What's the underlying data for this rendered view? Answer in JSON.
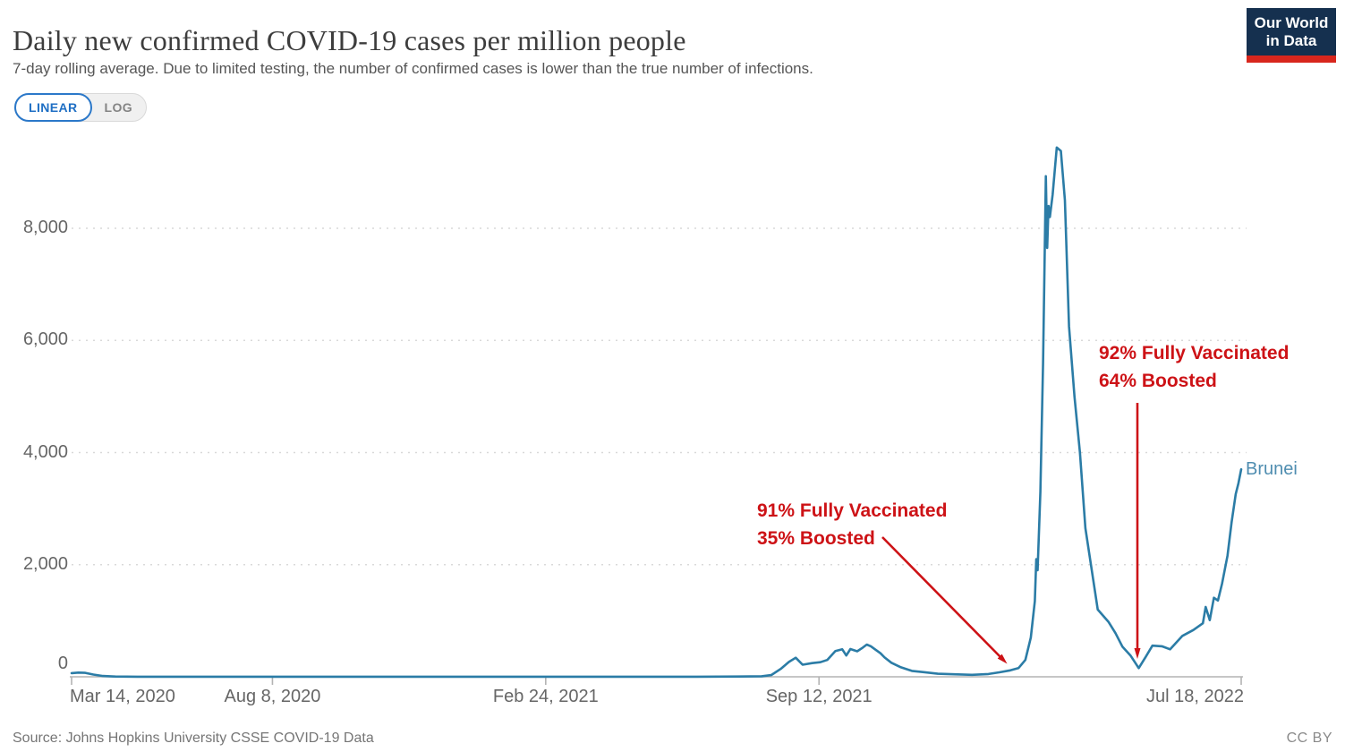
{
  "header": {
    "title": "Daily new confirmed COVID-19 cases per million people",
    "subtitle": "7-day rolling average. Due to limited testing, the number of confirmed cases is lower than the true number of infections.",
    "logo": {
      "line1": "Our World",
      "line2": "in Data"
    }
  },
  "controls": {
    "linear_label": "LINEAR",
    "log_label": "LOG"
  },
  "footer": {
    "source": "Source: Johns Hopkins University CSSE COVID-19 Data",
    "license": "CC BY"
  },
  "colors": {
    "line": "#2b7ca6",
    "series_label": "#4f8db0",
    "annotation_red": "#cd1216",
    "grid": "#d9d9d9",
    "axis": "#b3b3b3",
    "tick_text": "#666666",
    "logo_navy": "#15304f",
    "logo_red": "#d8261d",
    "toggle_blue": "#1f6fc4"
  },
  "chart_data": {
    "type": "line",
    "title": "Daily new confirmed COVID-19 cases per million people",
    "xlabel": "",
    "ylabel": "",
    "grid": "horizontal-dashed",
    "legend_position": "end-of-line",
    "end_label": "Brunei",
    "xlim": [
      "2020-03-14",
      "2022-07-18"
    ],
    "ylim": [
      0,
      9520
    ],
    "x_ticks": [
      {
        "label": "Mar 14, 2020",
        "date": "2020-03-14"
      },
      {
        "label": "Aug 8, 2020",
        "date": "2020-08-08"
      },
      {
        "label": "Feb 24, 2021",
        "date": "2021-02-24"
      },
      {
        "label": "Sep 12, 2021",
        "date": "2021-09-12"
      },
      {
        "label": "Jul 18, 2022",
        "date": "2022-07-18"
      }
    ],
    "y_ticks": [
      {
        "label": "0",
        "value": 0
      },
      {
        "label": "2,000",
        "value": 2000
      },
      {
        "label": "4,000",
        "value": 4000
      },
      {
        "label": "6,000",
        "value": 6000
      },
      {
        "label": "8,000",
        "value": 8000
      }
    ],
    "annotations": [
      {
        "lines": [
          "91% Fully Vaccinated",
          "35% Boosted"
        ],
        "target_date": "2022-01-30",
        "target_value": 110
      },
      {
        "lines": [
          "92% Fully Vaccinated",
          "64% Boosted"
        ],
        "target_date": "2022-05-04",
        "target_value": 155
      }
    ],
    "series": [
      {
        "name": "Brunei",
        "points": [
          [
            "2020-03-14",
            65
          ],
          [
            "2020-03-19",
            75
          ],
          [
            "2020-03-24",
            70
          ],
          [
            "2020-03-30",
            40
          ],
          [
            "2020-04-06",
            15
          ],
          [
            "2020-04-15",
            5
          ],
          [
            "2020-05-01",
            2
          ],
          [
            "2020-07-01",
            1
          ],
          [
            "2020-09-01",
            1
          ],
          [
            "2020-12-01",
            2
          ],
          [
            "2021-02-24",
            1
          ],
          [
            "2021-05-01",
            2
          ],
          [
            "2021-06-15",
            2
          ],
          [
            "2021-07-15",
            4
          ],
          [
            "2021-08-01",
            10
          ],
          [
            "2021-08-08",
            30
          ],
          [
            "2021-08-15",
            140
          ],
          [
            "2021-08-21",
            265
          ],
          [
            "2021-08-26",
            340
          ],
          [
            "2021-08-31",
            215
          ],
          [
            "2021-09-07",
            245
          ],
          [
            "2021-09-13",
            260
          ],
          [
            "2021-09-18",
            300
          ],
          [
            "2021-09-24",
            460
          ],
          [
            "2021-09-29",
            490
          ],
          [
            "2021-10-02",
            380
          ],
          [
            "2021-10-05",
            495
          ],
          [
            "2021-10-10",
            455
          ],
          [
            "2021-10-14",
            520
          ],
          [
            "2021-10-17",
            575
          ],
          [
            "2021-10-20",
            545
          ],
          [
            "2021-10-23",
            490
          ],
          [
            "2021-10-27",
            420
          ],
          [
            "2021-10-30",
            345
          ],
          [
            "2021-11-04",
            250
          ],
          [
            "2021-11-11",
            170
          ],
          [
            "2021-11-19",
            105
          ],
          [
            "2021-11-27",
            85
          ],
          [
            "2021-12-08",
            55
          ],
          [
            "2021-12-20",
            45
          ],
          [
            "2022-01-02",
            35
          ],
          [
            "2022-01-14",
            50
          ],
          [
            "2022-01-22",
            80
          ],
          [
            "2022-01-30",
            115
          ],
          [
            "2022-02-05",
            155
          ],
          [
            "2022-02-10",
            300
          ],
          [
            "2022-02-14",
            700
          ],
          [
            "2022-02-17",
            1350
          ],
          [
            "2022-02-18",
            2100
          ],
          [
            "2022-02-19",
            1900
          ],
          [
            "2022-02-21",
            3300
          ],
          [
            "2022-02-23",
            5600
          ],
          [
            "2022-02-24",
            7200
          ],
          [
            "2022-02-25",
            8930
          ],
          [
            "2022-02-26",
            7650
          ],
          [
            "2022-02-27",
            8400
          ],
          [
            "2022-02-28",
            8200
          ],
          [
            "2022-03-02",
            8600
          ],
          [
            "2022-03-05",
            9440
          ],
          [
            "2022-03-08",
            9380
          ],
          [
            "2022-03-11",
            8500
          ],
          [
            "2022-03-14",
            6250
          ],
          [
            "2022-03-18",
            5000
          ],
          [
            "2022-03-22",
            4000
          ],
          [
            "2022-03-26",
            2650
          ],
          [
            "2022-04-04",
            1200
          ],
          [
            "2022-04-12",
            975
          ],
          [
            "2022-04-17",
            780
          ],
          [
            "2022-04-22",
            540
          ],
          [
            "2022-04-28",
            380
          ],
          [
            "2022-05-04",
            155
          ],
          [
            "2022-05-09",
            350
          ],
          [
            "2022-05-14",
            555
          ],
          [
            "2022-05-21",
            545
          ],
          [
            "2022-05-27",
            490
          ],
          [
            "2022-06-05",
            730
          ],
          [
            "2022-06-13",
            835
          ],
          [
            "2022-06-20",
            955
          ],
          [
            "2022-06-22",
            1245
          ],
          [
            "2022-06-25",
            1010
          ],
          [
            "2022-06-28",
            1410
          ],
          [
            "2022-07-01",
            1360
          ],
          [
            "2022-07-04",
            1660
          ],
          [
            "2022-07-08",
            2160
          ],
          [
            "2022-07-11",
            2760
          ],
          [
            "2022-07-14",
            3260
          ],
          [
            "2022-07-16",
            3450
          ],
          [
            "2022-07-18",
            3700
          ]
        ]
      }
    ]
  }
}
